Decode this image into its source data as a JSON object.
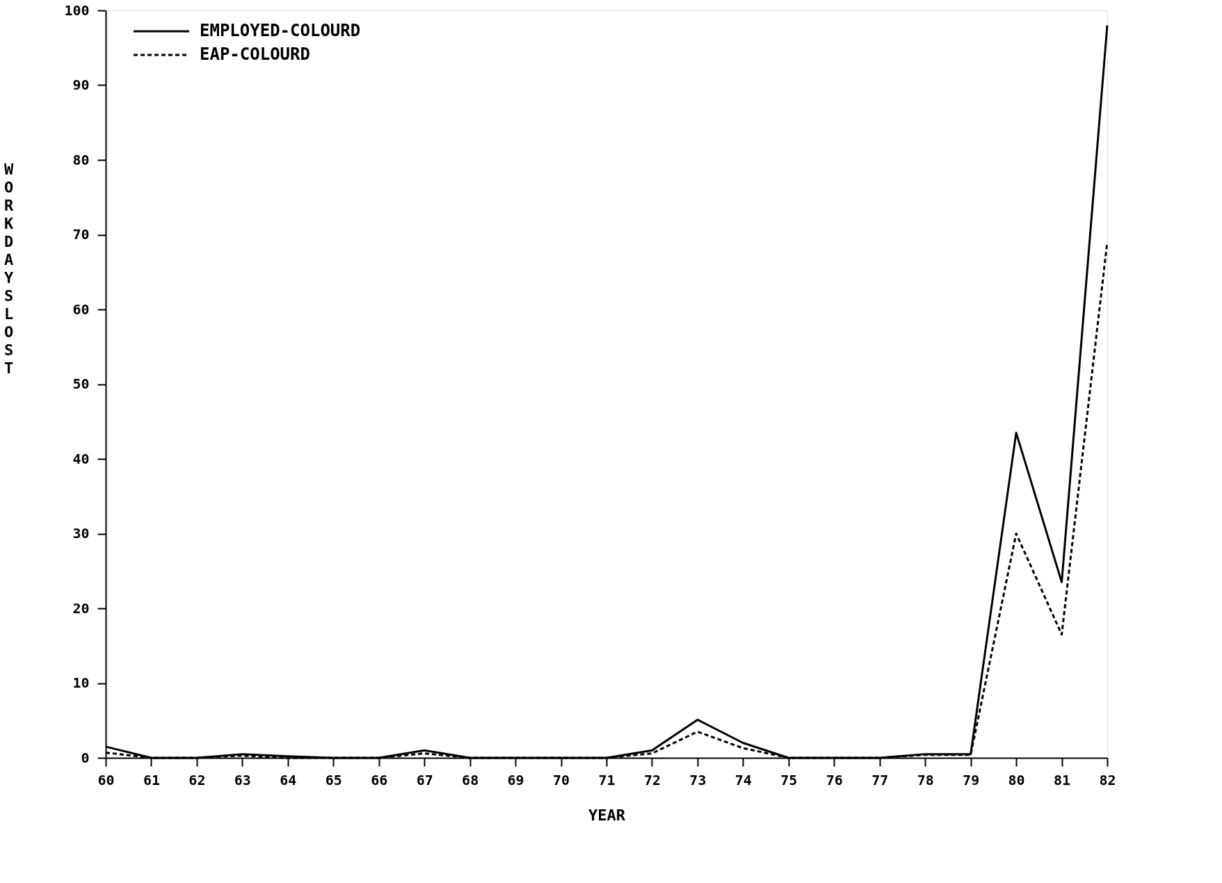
{
  "chart_data": {
    "type": "line",
    "xlabel": "YEAR",
    "ylabel": "WORKDAYS LOST",
    "categories": [
      "60",
      "61",
      "62",
      "63",
      "64",
      "65",
      "66",
      "67",
      "68",
      "69",
      "70",
      "71",
      "72",
      "73",
      "74",
      "75",
      "76",
      "77",
      "78",
      "79",
      "80",
      "81",
      "82"
    ],
    "ylim": [
      0,
      100
    ],
    "yticks": [
      0,
      10,
      20,
      30,
      40,
      50,
      60,
      70,
      80,
      90,
      100
    ],
    "grid": false,
    "legend": "top left",
    "marker": "none",
    "series": [
      {
        "name": "EMPLOYED-COLOURD",
        "color": "#000000",
        "line_style": "solid",
        "values": [
          1.5,
          0,
          0,
          0.5,
          0.2,
          0,
          0,
          1,
          0,
          0,
          0,
          0,
          1,
          5.1,
          2,
          0,
          0,
          0,
          0.5,
          0.5,
          43.5,
          23.5,
          98
        ]
      },
      {
        "name": "EAP-COLOURD",
        "color": "#000000",
        "line_style": "dashed",
        "values": [
          0.7,
          0,
          0,
          0.3,
          0,
          0,
          0,
          0.6,
          0,
          0,
          0,
          0,
          0.6,
          3.5,
          1.3,
          0,
          0,
          0,
          0.4,
          0.4,
          30,
          16.5,
          69
        ]
      }
    ]
  }
}
